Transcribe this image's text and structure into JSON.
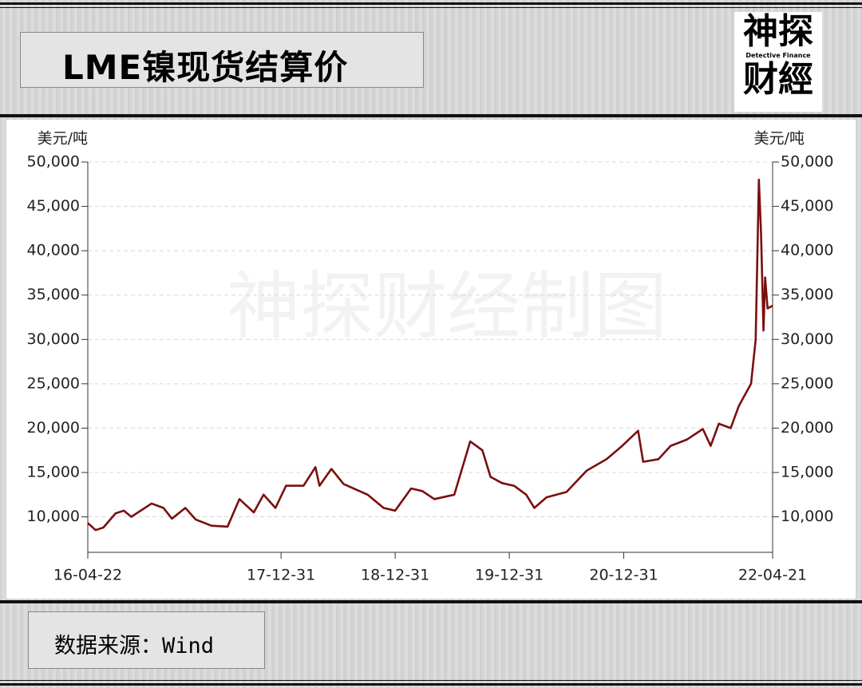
{
  "header": {
    "title": "LME镍现货结算价"
  },
  "logo": {
    "top": "神探",
    "middle": "Detective Finance",
    "bottom": "财經"
  },
  "watermark": "神探财经制图",
  "footer": {
    "source": "数据来源：Wind"
  },
  "chart_data": {
    "type": "line",
    "y_label": "美元/吨",
    "y2_label": "美元/吨",
    "xlim": [
      "16-04-22",
      "22-04-21"
    ],
    "xticks": [
      "16-04-22",
      "17-12-31",
      "18-12-31",
      "19-12-31",
      "20-12-31",
      "22-04-21"
    ],
    "ylim": [
      6000,
      50000
    ],
    "yticks": [
      {
        "value": 10000,
        "label": "10,000"
      },
      {
        "value": 15000,
        "label": "15,000"
      },
      {
        "value": 20000,
        "label": "20,000"
      },
      {
        "value": 25000,
        "label": "25,000"
      },
      {
        "value": 30000,
        "label": "30,000"
      },
      {
        "value": 35000,
        "label": "35,000"
      },
      {
        "value": 40000,
        "label": "40,000"
      },
      {
        "value": 45000,
        "label": "45,000"
      },
      {
        "value": 50000,
        "label": "50,000"
      }
    ],
    "y2lim": [
      6000,
      50000
    ],
    "y2ticks": [
      {
        "value": 10000,
        "label": "10,000"
      },
      {
        "value": 15000,
        "label": "15,000"
      },
      {
        "value": 20000,
        "label": "20,000"
      },
      {
        "value": 25000,
        "label": "25,000"
      },
      {
        "value": 30000,
        "label": "30,000"
      },
      {
        "value": 35000,
        "label": "35,000"
      },
      {
        "value": 40000,
        "label": "40,000"
      },
      {
        "value": 45000,
        "label": "45,000"
      },
      {
        "value": 50000,
        "label": "50,000"
      }
    ],
    "grid": true,
    "x": [
      "16-04-22",
      "16-05-17",
      "16-06-11",
      "16-07-20",
      "16-08-15",
      "16-09-08",
      "16-11-12",
      "16-12-20",
      "17-01-16",
      "17-02-28",
      "17-04-02",
      "17-05-23",
      "17-07-13",
      "17-08-20",
      "17-10-05",
      "17-11-05",
      "17-12-13",
      "18-01-16",
      "18-03-13",
      "18-04-20",
      "18-05-03",
      "18-06-10",
      "18-07-19",
      "18-10-04",
      "18-11-24",
      "18-12-31",
      "19-02-20",
      "19-03-28",
      "19-05-05",
      "19-07-08",
      "19-08-28",
      "19-10-06",
      "19-11-01",
      "19-12-08",
      "20-01-15",
      "20-02-23",
      "20-03-20",
      "20-04-28",
      "20-07-01",
      "20-09-03",
      "20-11-06",
      "20-12-26",
      "21-02-15",
      "21-03-03",
      "21-04-21",
      "21-05-30",
      "21-07-20",
      "21-09-10",
      "21-10-05",
      "21-10-31",
      "21-12-08",
      "22-01-03",
      "22-02-11",
      "22-02-26",
      "22-03-08",
      "22-03-15",
      "22-03-23",
      "22-03-28",
      "22-04-05",
      "22-04-21"
    ],
    "series": [
      {
        "name": "LME镍现货结算价",
        "color": "#7a0f0f",
        "values": [
          9300,
          8500,
          8800,
          10400,
          10700,
          10000,
          11500,
          11000,
          9800,
          11000,
          9700,
          9000,
          8900,
          12000,
          10500,
          12500,
          11000,
          13500,
          13500,
          15600,
          13500,
          15400,
          13700,
          12500,
          11000,
          10700,
          13200,
          12900,
          12000,
          12500,
          18500,
          17500,
          14500,
          13800,
          13500,
          12500,
          11000,
          12200,
          12800,
          15200,
          16500,
          18000,
          19700,
          16200,
          16500,
          18000,
          18700,
          19900,
          18000,
          20500,
          20000,
          22500,
          25000,
          30000,
          48000,
          42000,
          31000,
          37000,
          33500,
          33800
        ]
      }
    ]
  }
}
